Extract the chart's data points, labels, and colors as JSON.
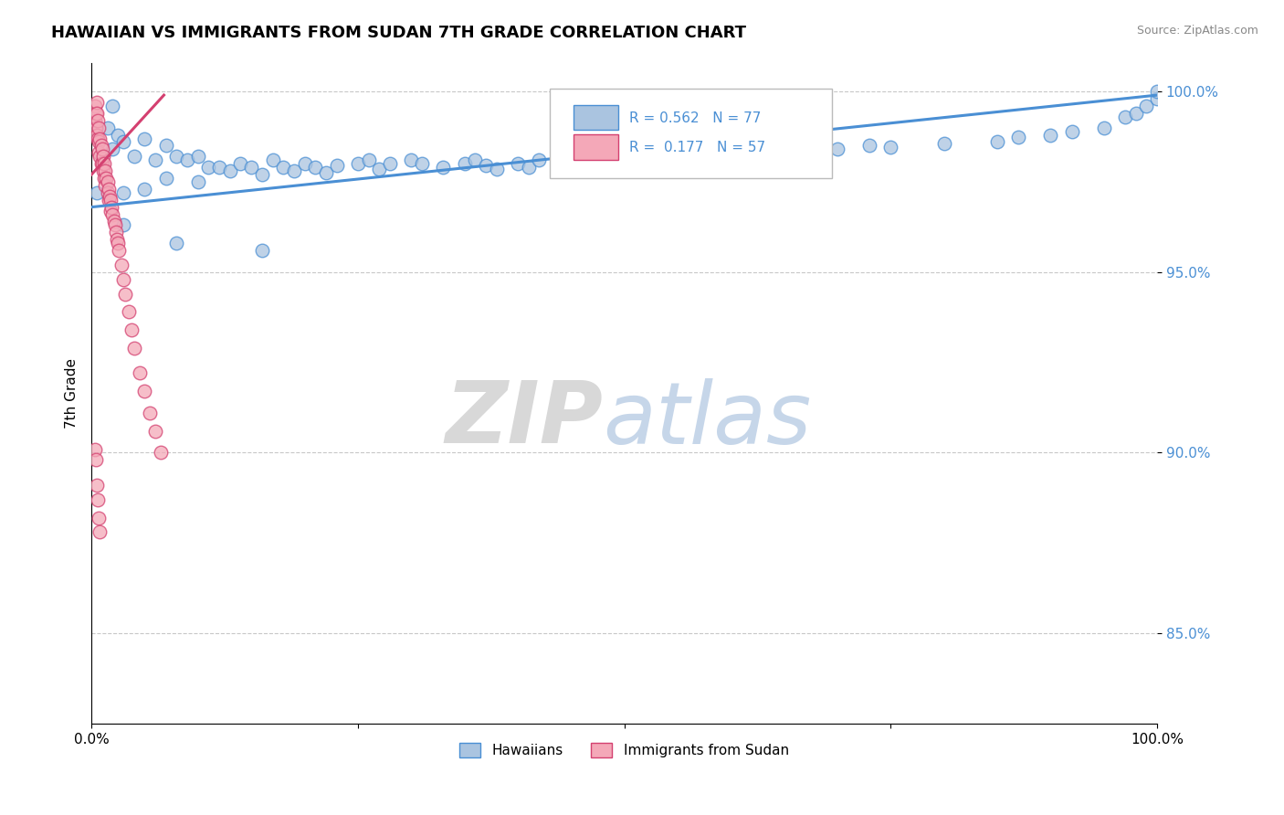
{
  "title": "HAWAIIAN VS IMMIGRANTS FROM SUDAN 7TH GRADE CORRELATION CHART",
  "source_text": "Source: ZipAtlas.com",
  "ylabel": "7th Grade",
  "xlim": [
    0.0,
    1.0
  ],
  "ylim": [
    0.825,
    1.008
  ],
  "yticks": [
    0.85,
    0.9,
    0.95,
    1.0
  ],
  "ytick_labels": [
    "85.0%",
    "90.0%",
    "95.0%",
    "100.0%"
  ],
  "xticks": [
    0.0,
    0.25,
    0.5,
    0.75,
    1.0
  ],
  "xtick_labels": [
    "0.0%",
    "",
    "",
    "",
    "100.0%"
  ],
  "legend_r_blue": "R = 0.562",
  "legend_n_blue": "N = 77",
  "legend_r_pink": "R =  0.177",
  "legend_n_pink": "N = 57",
  "blue_color": "#aac4e0",
  "pink_color": "#f4a8b8",
  "blue_line_color": "#4a8fd4",
  "pink_line_color": "#d44070",
  "grid_color": "#c8c8c8",
  "blue_scatter_x": [
    0.005,
    0.01,
    0.015,
    0.02,
    0.02,
    0.025,
    0.03,
    0.03,
    0.04,
    0.05,
    0.05,
    0.06,
    0.07,
    0.07,
    0.08,
    0.09,
    0.1,
    0.1,
    0.11,
    0.12,
    0.13,
    0.14,
    0.15,
    0.16,
    0.17,
    0.18,
    0.19,
    0.2,
    0.21,
    0.22,
    0.23,
    0.25,
    0.26,
    0.27,
    0.28,
    0.3,
    0.31,
    0.33,
    0.35,
    0.36,
    0.37,
    0.38,
    0.4,
    0.41,
    0.42,
    0.44,
    0.45,
    0.46,
    0.47,
    0.48,
    0.5,
    0.52,
    0.54,
    0.55,
    0.57,
    0.59,
    0.6,
    0.63,
    0.65,
    0.68,
    0.7,
    0.73,
    0.75,
    0.8,
    0.85,
    0.87,
    0.9,
    0.92,
    0.95,
    0.97,
    0.98,
    0.99,
    1.0,
    1.0,
    0.03,
    0.08,
    0.16
  ],
  "blue_scatter_y": [
    0.972,
    0.982,
    0.99,
    0.996,
    0.984,
    0.988,
    0.986,
    0.972,
    0.982,
    0.987,
    0.973,
    0.981,
    0.985,
    0.976,
    0.982,
    0.981,
    0.982,
    0.975,
    0.979,
    0.979,
    0.978,
    0.98,
    0.979,
    0.977,
    0.981,
    0.979,
    0.978,
    0.98,
    0.979,
    0.9775,
    0.9795,
    0.98,
    0.981,
    0.9785,
    0.98,
    0.981,
    0.98,
    0.979,
    0.98,
    0.981,
    0.9795,
    0.9785,
    0.98,
    0.979,
    0.981,
    0.9785,
    0.98,
    0.9785,
    0.979,
    0.98,
    0.9785,
    0.98,
    0.981,
    0.9795,
    0.98,
    0.981,
    0.98,
    0.981,
    0.982,
    0.983,
    0.984,
    0.985,
    0.9845,
    0.9855,
    0.986,
    0.9875,
    0.988,
    0.989,
    0.99,
    0.993,
    0.994,
    0.996,
    0.998,
    1.0,
    0.963,
    0.958,
    0.956
  ],
  "pink_scatter_x": [
    0.003,
    0.003,
    0.004,
    0.004,
    0.005,
    0.005,
    0.005,
    0.006,
    0.006,
    0.007,
    0.007,
    0.007,
    0.008,
    0.008,
    0.009,
    0.009,
    0.01,
    0.01,
    0.011,
    0.011,
    0.012,
    0.012,
    0.013,
    0.013,
    0.014,
    0.015,
    0.015,
    0.016,
    0.016,
    0.017,
    0.018,
    0.018,
    0.019,
    0.02,
    0.021,
    0.022,
    0.023,
    0.024,
    0.025,
    0.026,
    0.028,
    0.03,
    0.032,
    0.035,
    0.038,
    0.04,
    0.045,
    0.05,
    0.055,
    0.06,
    0.065,
    0.003,
    0.004,
    0.005,
    0.006,
    0.007,
    0.008
  ],
  "pink_scatter_y": [
    0.996,
    0.992,
    0.994,
    0.99,
    0.997,
    0.994,
    0.988,
    0.992,
    0.987,
    0.99,
    0.986,
    0.983,
    0.987,
    0.982,
    0.985,
    0.98,
    0.984,
    0.98,
    0.982,
    0.978,
    0.98,
    0.976,
    0.978,
    0.974,
    0.976,
    0.975,
    0.972,
    0.973,
    0.97,
    0.971,
    0.97,
    0.967,
    0.968,
    0.966,
    0.964,
    0.963,
    0.961,
    0.959,
    0.958,
    0.956,
    0.952,
    0.948,
    0.944,
    0.939,
    0.934,
    0.929,
    0.922,
    0.917,
    0.911,
    0.906,
    0.9,
    0.901,
    0.898,
    0.891,
    0.887,
    0.882,
    0.878
  ],
  "blue_trend_x": [
    0.0,
    1.0
  ],
  "blue_trend_y": [
    0.968,
    0.999
  ],
  "pink_trend_x": [
    0.0,
    0.068
  ],
  "pink_trend_y": [
    0.977,
    0.999
  ]
}
